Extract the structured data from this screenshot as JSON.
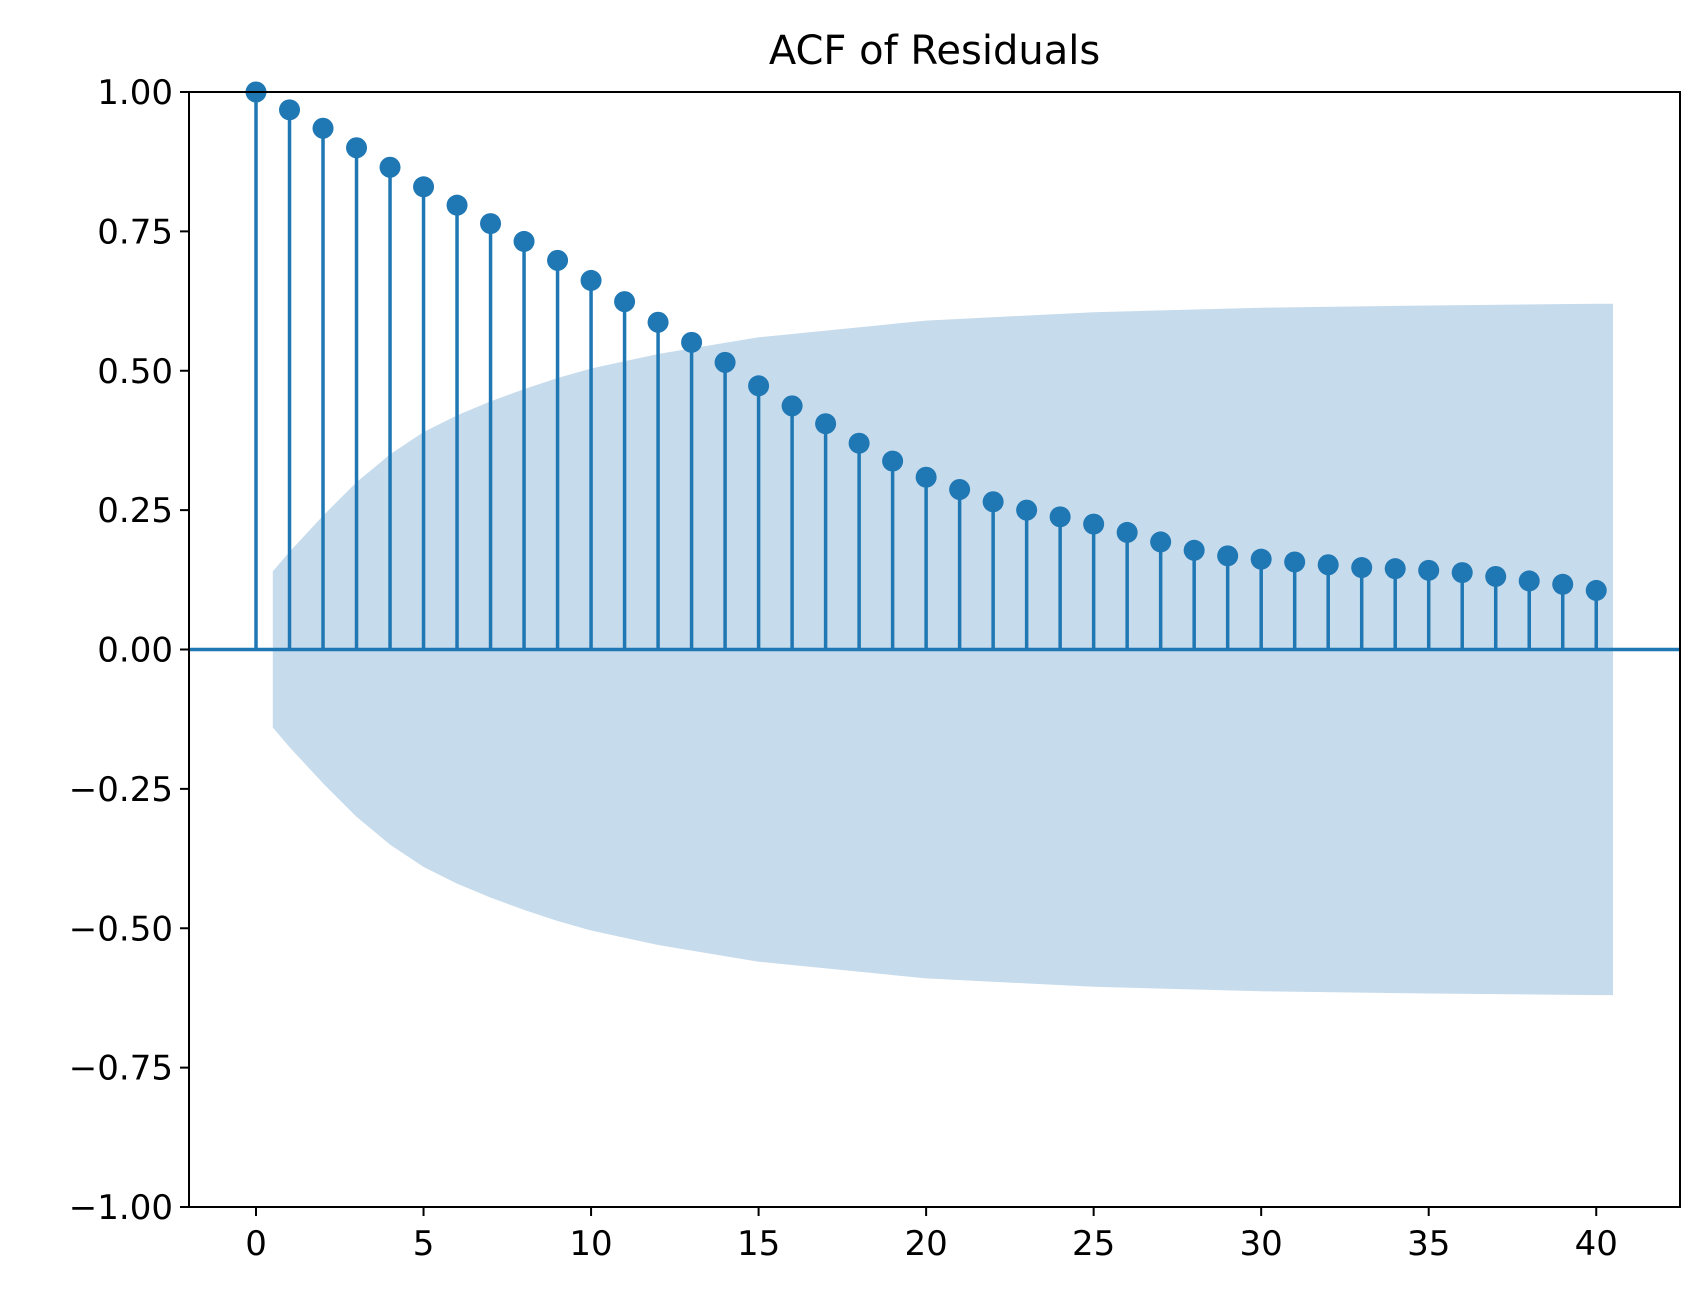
{
  "chart_data": {
    "type": "stem",
    "title": "ACF of Residuals",
    "xlabel": "",
    "ylabel": "",
    "xlim": [
      -2,
      42.5
    ],
    "ylim": [
      -1.0,
      1.0
    ],
    "x_ticks": [
      0,
      5,
      10,
      15,
      20,
      25,
      30,
      35,
      40
    ],
    "y_ticks": [
      -1.0,
      -0.75,
      -0.5,
      -0.25,
      0.0,
      0.25,
      0.5,
      0.75,
      1.0
    ],
    "x_tick_labels": [
      "0",
      "5",
      "10",
      "15",
      "20",
      "25",
      "30",
      "35",
      "40"
    ],
    "y_tick_labels": [
      "−1.00",
      "−0.75",
      "−0.50",
      "−0.25",
      "0.00",
      "0.25",
      "0.50",
      "0.75",
      "1.00"
    ],
    "grid": false,
    "colors": {
      "stem": "#1f77b4",
      "confidence_band": "#c6dbec"
    },
    "lags": [
      0,
      1,
      2,
      3,
      4,
      5,
      6,
      7,
      8,
      9,
      10,
      11,
      12,
      13,
      14,
      15,
      16,
      17,
      18,
      19,
      20,
      21,
      22,
      23,
      24,
      25,
      26,
      27,
      28,
      29,
      30,
      31,
      32,
      33,
      34,
      35,
      36,
      37,
      38,
      39,
      40
    ],
    "values": [
      1.0,
      0.968,
      0.935,
      0.9,
      0.865,
      0.83,
      0.797,
      0.764,
      0.732,
      0.698,
      0.662,
      0.624,
      0.587,
      0.551,
      0.515,
      0.473,
      0.437,
      0.405,
      0.37,
      0.338,
      0.309,
      0.287,
      0.265,
      0.25,
      0.238,
      0.225,
      0.21,
      0.193,
      0.178,
      0.168,
      0.162,
      0.157,
      0.152,
      0.147,
      0.145,
      0.142,
      0.138,
      0.131,
      0.123,
      0.117,
      0.106
    ],
    "confidence_band": {
      "x": [
        0.5,
        1,
        2,
        3,
        4,
        5,
        6,
        7,
        8,
        9,
        10,
        12,
        15,
        20,
        25,
        30,
        35,
        40,
        40.5
      ],
      "upper": [
        0.14,
        0.175,
        0.24,
        0.3,
        0.35,
        0.39,
        0.42,
        0.445,
        0.467,
        0.487,
        0.504,
        0.53,
        0.56,
        0.59,
        0.605,
        0.613,
        0.617,
        0.62,
        0.62
      ],
      "lower": [
        -0.14,
        -0.175,
        -0.24,
        -0.3,
        -0.35,
        -0.39,
        -0.42,
        -0.445,
        -0.467,
        -0.487,
        -0.504,
        -0.53,
        -0.56,
        -0.59,
        -0.605,
        -0.613,
        -0.617,
        -0.62,
        -0.62
      ]
    }
  }
}
